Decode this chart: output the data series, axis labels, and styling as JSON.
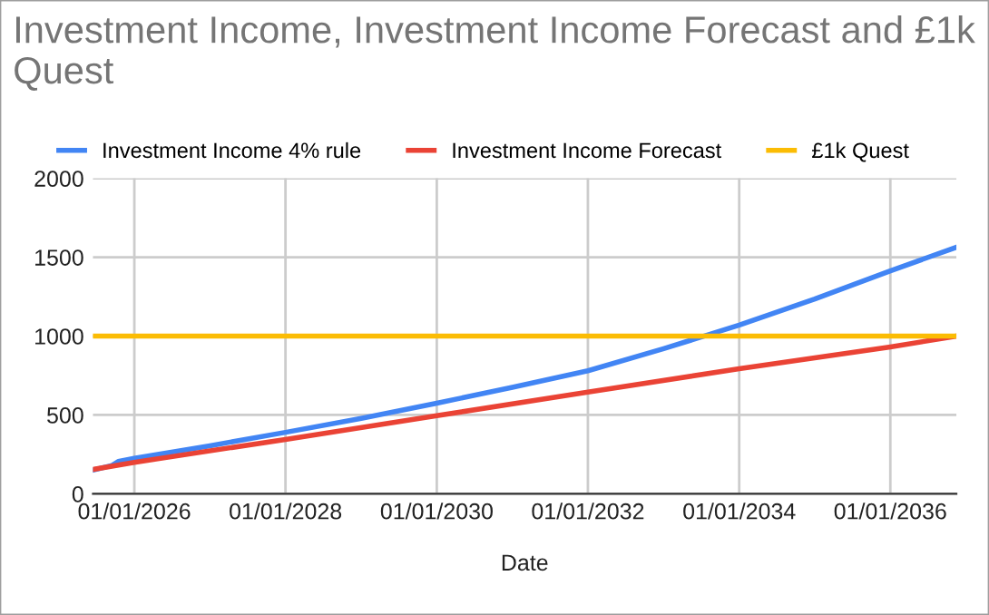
{
  "chart_data": {
    "type": "line",
    "title": "Investment Income, Investment Income Forecast and £1k Quest",
    "xlabel": "Date",
    "legend": "top left",
    "grid": true,
    "marker": "none",
    "line_style": "solid",
    "xlim": [
      "2025-06-15",
      "2036-11-15"
    ],
    "xticks": [
      {
        "value": "2026-01-01",
        "label": "01/01/2026"
      },
      {
        "value": "2028-01-01",
        "label": "01/01/2028"
      },
      {
        "value": "2030-01-01",
        "label": "01/01/2030"
      },
      {
        "value": "2032-01-01",
        "label": "01/01/2032"
      },
      {
        "value": "2034-01-01",
        "label": "01/01/2034"
      },
      {
        "value": "2036-01-01",
        "label": "01/01/2036"
      }
    ],
    "ylim": [
      0,
      2000
    ],
    "yticks": [
      0,
      500,
      1000,
      1500,
      2000
    ],
    "series": [
      {
        "name": "Investment Income 4% rule",
        "color": "#4285f4",
        "x": [
          "2025-06-15",
          "2025-09-15",
          "2025-10-15",
          "2026-01-01",
          "2027-01-01",
          "2028-01-01",
          "2029-01-01",
          "2030-01-01",
          "2031-01-01",
          "2032-01-01",
          "2033-01-01",
          "2034-01-01",
          "2035-01-01",
          "2036-01-01",
          "2036-11-15"
        ],
        "values": [
          150,
          180,
          205,
          225,
          305,
          390,
          478,
          575,
          675,
          780,
          920,
          1070,
          1235,
          1414,
          1563
        ]
      },
      {
        "name": "Investment Income Forecast",
        "color": "#ea4335",
        "x": [
          "2025-06-15",
          "2026-01-01",
          "2028-01-01",
          "2030-01-01",
          "2032-01-01",
          "2034-01-01",
          "2036-01-01",
          "2036-11-15"
        ],
        "values": [
          155,
          200,
          345,
          495,
          645,
          793,
          931,
          1000
        ]
      },
      {
        "name": "£1k Quest",
        "color": "#fbbc04",
        "x": [
          "2025-06-15",
          "2036-11-15"
        ],
        "values": [
          1000,
          1000
        ]
      }
    ]
  }
}
